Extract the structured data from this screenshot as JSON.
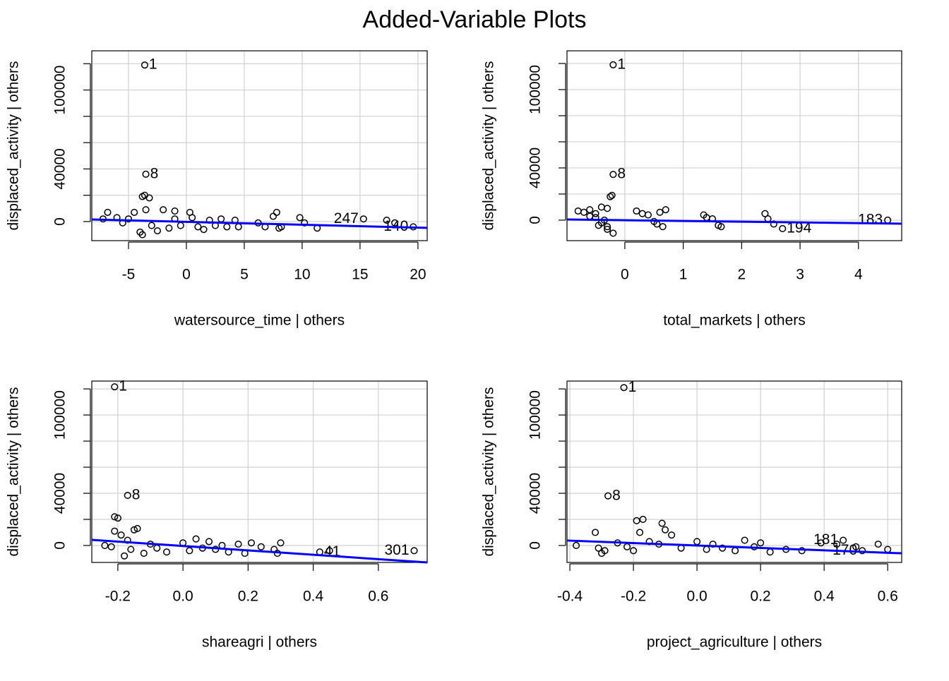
{
  "title": "Added-Variable Plots",
  "chart_data": [
    {
      "type": "scatter",
      "xlabel": "watersource_time | others",
      "ylabel": "displaced_activity  | others",
      "point_color": "#000000",
      "grid": true,
      "xlim": [
        -8.17,
        20.8
      ],
      "xticks": [
        -5,
        0,
        5,
        10,
        15,
        20
      ],
      "ylim": [
        -14500,
        129800
      ],
      "yticks": [
        0,
        40000,
        100000
      ],
      "yminorticks": [
        20000,
        60000,
        80000,
        120000
      ],
      "x": [
        -3.6,
        -3.5,
        -3.8,
        -3.6,
        -3.2,
        -3.5,
        -2.0,
        -1.0,
        0.3,
        -6.8,
        -4.5,
        -7.2,
        -6.0,
        -5.5,
        -5.0,
        -4.0,
        -3.8,
        -3.0,
        -2.5,
        -1.5,
        -1.0,
        -0.5,
        0.5,
        1.0,
        1.5,
        2.0,
        2.5,
        3.0,
        3.5,
        4.2,
        4.5,
        6.2,
        6.8,
        7.5,
        7.8,
        8.0,
        8.2,
        9.8,
        10.2,
        11.3,
        15.3,
        17.3,
        18.0,
        19.6
      ],
      "y": [
        119000,
        36000,
        19000,
        20000,
        18000,
        9000,
        9000,
        8000,
        7000,
        7000,
        7000,
        2000,
        3000,
        -1000,
        2000,
        -8000,
        -10000,
        -3000,
        -7000,
        -5000,
        2000,
        -3000,
        3000,
        -4000,
        -6000,
        1000,
        -3000,
        2000,
        -4000,
        1000,
        -4000,
        -1000,
        -4000,
        4000,
        7000,
        -5000,
        -4000,
        3000,
        -1000,
        -5000,
        2000,
        1000,
        -1000,
        -4000
      ],
      "labels": [
        "1",
        "8",
        null,
        null,
        null,
        null,
        null,
        null,
        null,
        null,
        null,
        null,
        null,
        null,
        null,
        null,
        null,
        null,
        null,
        null,
        null,
        null,
        null,
        null,
        null,
        null,
        null,
        null,
        null,
        null,
        null,
        null,
        null,
        null,
        null,
        null,
        null,
        null,
        null,
        null,
        "247",
        null,
        null,
        "140"
      ],
      "fit": {
        "color": "#0000ff",
        "x": [
          -8.17,
          20.8
        ],
        "y": [
          1600,
          -4800
        ]
      }
    },
    {
      "type": "scatter",
      "xlabel": "total_markets | others",
      "ylabel": "displaced_activity  | others",
      "point_color": "#000000",
      "grid": true,
      "xlim": [
        -0.99,
        4.74
      ],
      "xticks": [
        0,
        1,
        2,
        3,
        4
      ],
      "ylim": [
        -15700,
        129700
      ],
      "yticks": [
        0,
        40000,
        100000
      ],
      "yminorticks": [
        20000,
        60000,
        80000,
        120000
      ],
      "x": [
        -0.2,
        -0.2,
        -0.8,
        -0.7,
        -0.6,
        -0.5,
        -0.5,
        -0.4,
        -0.4,
        -0.3,
        -0.3,
        -0.2,
        -0.25,
        -0.22,
        -0.3,
        -0.6,
        -0.45,
        -0.35,
        0.2,
        0.3,
        0.4,
        0.5,
        0.55,
        0.6,
        0.65,
        0.7,
        1.35,
        1.4,
        1.5,
        1.6,
        1.65,
        2.4,
        2.45,
        2.55,
        2.7,
        4.5
      ],
      "y": [
        119000,
        35000,
        7000,
        6000,
        8000,
        5000,
        2000,
        -2000,
        10000,
        -5000,
        -7000,
        -10000,
        18000,
        19000,
        9000,
        3000,
        -4000,
        0,
        7000,
        5000,
        4000,
        -1000,
        -3000,
        6000,
        -5000,
        8000,
        4000,
        2000,
        1000,
        -4000,
        -5000,
        5000,
        1000,
        -3000,
        -6500,
        0
      ],
      "labels": [
        "1",
        "8",
        null,
        null,
        null,
        null,
        null,
        null,
        null,
        null,
        null,
        null,
        null,
        null,
        null,
        null,
        null,
        null,
        null,
        null,
        null,
        null,
        null,
        null,
        null,
        null,
        null,
        null,
        null,
        null,
        null,
        null,
        null,
        null,
        "194",
        "183"
      ],
      "fit": {
        "color": "#0000ff",
        "x": [
          -0.99,
          4.74
        ],
        "y": [
          500,
          -2700
        ]
      }
    },
    {
      "type": "scatter",
      "xlabel": "shareagri | others",
      "ylabel": "displaced_activity  | others",
      "point_color": "#000000",
      "grid": true,
      "xlim": [
        -0.28,
        0.75
      ],
      "xticks": [
        {
          "value": -0.2,
          "label": "-0.2"
        },
        {
          "value": 0,
          "label": "0.0"
        },
        0.2,
        0.4,
        0.6
      ],
      "ylim": [
        -13000,
        126000
      ],
      "yticks": [
        0,
        40000,
        100000
      ],
      "yminorticks": [
        20000,
        60000,
        80000,
        120000
      ],
      "x": [
        -0.21,
        -0.17,
        -0.21,
        -0.2,
        -0.15,
        -0.14,
        -0.21,
        -0.19,
        -0.17,
        -0.24,
        -0.22,
        -0.18,
        -0.16,
        -0.12,
        -0.1,
        -0.08,
        -0.05,
        0.0,
        0.02,
        0.04,
        0.06,
        0.08,
        0.1,
        0.12,
        0.14,
        0.17,
        0.19,
        0.21,
        0.24,
        0.28,
        0.29,
        0.3,
        0.42,
        0.45,
        0.71
      ],
      "y": [
        121600,
        38400,
        22000,
        21000,
        12000,
        13000,
        11000,
        8000,
        4000,
        0,
        -1000,
        -8000,
        -3000,
        -6000,
        1000,
        -2000,
        -5000,
        2000,
        -4000,
        5000,
        -2000,
        3000,
        -3000,
        0,
        -5000,
        1000,
        -6000,
        2000,
        -1000,
        -3000,
        -6000,
        2000,
        -5000,
        -4000,
        -4000
      ],
      "labels": [
        "1",
        "8",
        null,
        null,
        null,
        null,
        null,
        null,
        null,
        null,
        null,
        null,
        null,
        null,
        null,
        null,
        null,
        null,
        null,
        null,
        null,
        null,
        null,
        null,
        null,
        null,
        null,
        null,
        null,
        null,
        null,
        null,
        "41",
        null,
        "301"
      ],
      "fit": {
        "color": "#0000ff",
        "x": [
          -0.28,
          0.75
        ],
        "y": [
          4300,
          -13000
        ]
      }
    },
    {
      "type": "scatter",
      "xlabel": "project_agriculture | others",
      "ylabel": "displaced_activity  | others",
      "point_color": "#000000",
      "grid": true,
      "xlim": [
        -0.409,
        0.644
      ],
      "xticks": [
        {
          "value": -0.4,
          "label": "-0.4"
        },
        {
          "value": -0.2,
          "label": "-0.2"
        },
        {
          "value": 0,
          "label": "0.0"
        },
        0.2,
        0.4,
        0.6
      ],
      "ylim": [
        -13000,
        126000
      ],
      "yticks": [
        0,
        40000,
        100000
      ],
      "yminorticks": [
        20000,
        60000,
        80000,
        120000
      ],
      "x": [
        -0.23,
        -0.28,
        -0.19,
        -0.17,
        -0.11,
        -0.1,
        -0.18,
        -0.08,
        -0.32,
        -0.38,
        -0.31,
        -0.3,
        -0.29,
        -0.25,
        -0.22,
        -0.2,
        -0.15,
        -0.12,
        -0.05,
        0.0,
        0.03,
        0.05,
        0.08,
        0.12,
        0.15,
        0.18,
        0.2,
        0.23,
        0.28,
        0.33,
        0.39,
        0.44,
        0.46,
        0.5,
        0.52,
        0.57,
        0.6
      ],
      "y": [
        121000,
        38000,
        19000,
        20000,
        17000,
        12000,
        10000,
        8000,
        10000,
        0,
        -2000,
        -6000,
        -4000,
        2000,
        -1000,
        -4000,
        3000,
        1000,
        -2000,
        3000,
        -3000,
        1000,
        -2000,
        -4000,
        4000,
        -1000,
        2000,
        -5000,
        -3000,
        -4000,
        2000,
        1000,
        4000,
        -1000,
        -4000,
        1000,
        -3000
      ],
      "labels": [
        "1",
        "8",
        null,
        null,
        null,
        null,
        null,
        null,
        null,
        null,
        null,
        null,
        null,
        null,
        null,
        null,
        null,
        null,
        null,
        null,
        null,
        null,
        null,
        null,
        null,
        null,
        null,
        null,
        null,
        null,
        null,
        null,
        "181",
        null,
        "170",
        null,
        null
      ],
      "fit": {
        "color": "#0000ff",
        "x": [
          -0.409,
          0.644
        ],
        "y": [
          3800,
          -6000
        ]
      }
    }
  ]
}
